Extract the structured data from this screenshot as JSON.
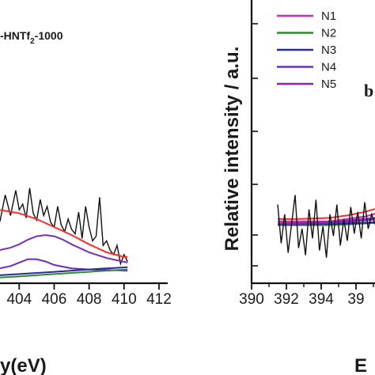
{
  "chart_data": [
    {
      "type": "line",
      "title": "-HNTf",
      "title_sub": "2",
      "title_suffix": "-1000",
      "xlabel": "y(eV)",
      "ylabel": "",
      "x_ticks": [
        "404",
        "406",
        "408",
        "410",
        "412"
      ],
      "xlim": [
        402.9,
        412.5
      ],
      "ylim": [
        0,
        100
      ],
      "grid": false,
      "series": [
        {
          "color": "#111111",
          "x": [
            402.9,
            403.2,
            403.5,
            403.8,
            404.0,
            404.2,
            404.4,
            404.6,
            404.8,
            405.0,
            405.2,
            405.4,
            405.6,
            405.8,
            406.0,
            406.2,
            406.4,
            406.6,
            406.8,
            407.0,
            407.2,
            407.4,
            407.6,
            407.8,
            408.0,
            408.2,
            408.4,
            408.6,
            408.8,
            409.0,
            409.2,
            409.4,
            409.6,
            409.8,
            410.0,
            410.2
          ],
          "y": [
            45,
            68,
            50,
            72,
            55,
            60,
            48,
            74,
            52,
            46,
            64,
            50,
            58,
            44,
            40,
            58,
            42,
            36,
            47,
            38,
            34,
            53,
            30,
            58,
            40,
            28,
            32,
            66,
            24,
            28,
            20,
            16,
            24,
            8,
            16,
            10
          ]
        },
        {
          "color": "#ff2a2a",
          "x": [
            402.9,
            404,
            405,
            406,
            407,
            408,
            409,
            410,
            410.2
          ],
          "y": [
            55,
            52,
            47,
            40,
            33,
            25,
            18,
            14,
            14
          ]
        },
        {
          "color": "#7b2fb8",
          "x": [
            402.9,
            403.5,
            404,
            404.5,
            405,
            405.5,
            406,
            406.5,
            407,
            408,
            409,
            410.2
          ],
          "y": [
            20,
            22,
            25,
            29,
            32,
            33,
            32,
            29,
            25,
            18,
            13,
            9
          ]
        },
        {
          "color": "#6a2bc8",
          "x": [
            402.9,
            403.5,
            404,
            404.5,
            405,
            405.5,
            406,
            407,
            408,
            410.2
          ],
          "y": [
            4,
            6,
            9,
            12,
            12,
            10,
            7,
            4,
            3,
            2
          ]
        },
        {
          "color": "#2a2a9a",
          "x": [
            402.9,
            404,
            405,
            406,
            407,
            408,
            409,
            410.2
          ],
          "y": [
            -2,
            -1,
            0,
            1,
            2,
            3,
            4,
            5
          ]
        },
        {
          "color": "#2e8b2e",
          "x": [
            402.9,
            404,
            405,
            406,
            407,
            408,
            409,
            410.2
          ],
          "y": [
            -4,
            -3,
            -2,
            -1,
            0,
            1,
            2,
            3
          ]
        }
      ]
    },
    {
      "type": "line",
      "panel_label": "b",
      "xlabel": "E",
      "ylabel": "Relative intensity / a.u.",
      "x_ticks": [
        "390",
        "392",
        "394",
        "39"
      ],
      "xlim": [
        390,
        397.5
      ],
      "ylim": [
        0,
        100
      ],
      "grid": false,
      "legend_placement": "top-left",
      "series": [
        {
          "name": "N1",
          "color": "#c030c0",
          "x": [
            391.5,
            392.5,
            393.5,
            394.5,
            395.5,
            396.5,
            397.5
          ],
          "y": [
            41,
            41,
            41,
            41,
            42,
            43,
            45
          ]
        },
        {
          "name": "N2",
          "color": "#2e8b2e",
          "x": [
            391.5,
            392.5,
            393.5,
            394.5,
            395.5,
            396.5,
            397.5
          ],
          "y": [
            39.5,
            39.5,
            39.5,
            39.5,
            39.8,
            40.2,
            40.6
          ]
        },
        {
          "name": "N3",
          "color": "#2a2a9a",
          "x": [
            391.5,
            392.5,
            393.5,
            394.5,
            395.5,
            396.5,
            397.5
          ],
          "y": [
            39.8,
            39.8,
            39.9,
            40,
            40.2,
            40.5,
            40.8
          ]
        },
        {
          "name": "N4",
          "color": "#6a2bc8",
          "x": [
            391.5,
            392.5,
            393.5,
            394.5,
            395.5,
            396.5,
            397.5
          ],
          "y": [
            40,
            40,
            40.2,
            40.4,
            40.8,
            41.5,
            42
          ]
        },
        {
          "name": "N5",
          "color": "#8e24aa",
          "x": [
            391.5,
            392.5,
            393.5,
            394.5,
            395.5,
            396.5,
            397.5
          ],
          "y": [
            40.2,
            40.3,
            40.5,
            40.8,
            41.3,
            42,
            42.8
          ]
        },
        {
          "color": "#ff2a2a",
          "x": [
            391.5,
            392.5,
            393.5,
            394.5,
            395.5,
            396.5,
            397.5
          ],
          "y": [
            42,
            42,
            42.2,
            42.5,
            43.5,
            45,
            47
          ]
        },
        {
          "color": "#111111",
          "x": [
            391.5,
            391.7,
            391.9,
            392.1,
            392.3,
            392.5,
            392.7,
            392.9,
            393.1,
            393.3,
            393.5,
            393.7,
            393.9,
            394.1,
            394.3,
            394.5,
            394.7,
            394.9,
            395.1,
            395.3,
            395.5,
            395.7,
            395.9,
            396.1,
            396.3,
            396.5,
            396.7,
            396.9,
            397.1,
            397.3,
            397.5
          ],
          "y": [
            48,
            32,
            44,
            28,
            40,
            52,
            30,
            38,
            27,
            46,
            34,
            50,
            29,
            39,
            26,
            44,
            35,
            48,
            31,
            42,
            33,
            47,
            36,
            45,
            34,
            49,
            38,
            44,
            40,
            47,
            42
          ]
        }
      ]
    }
  ]
}
